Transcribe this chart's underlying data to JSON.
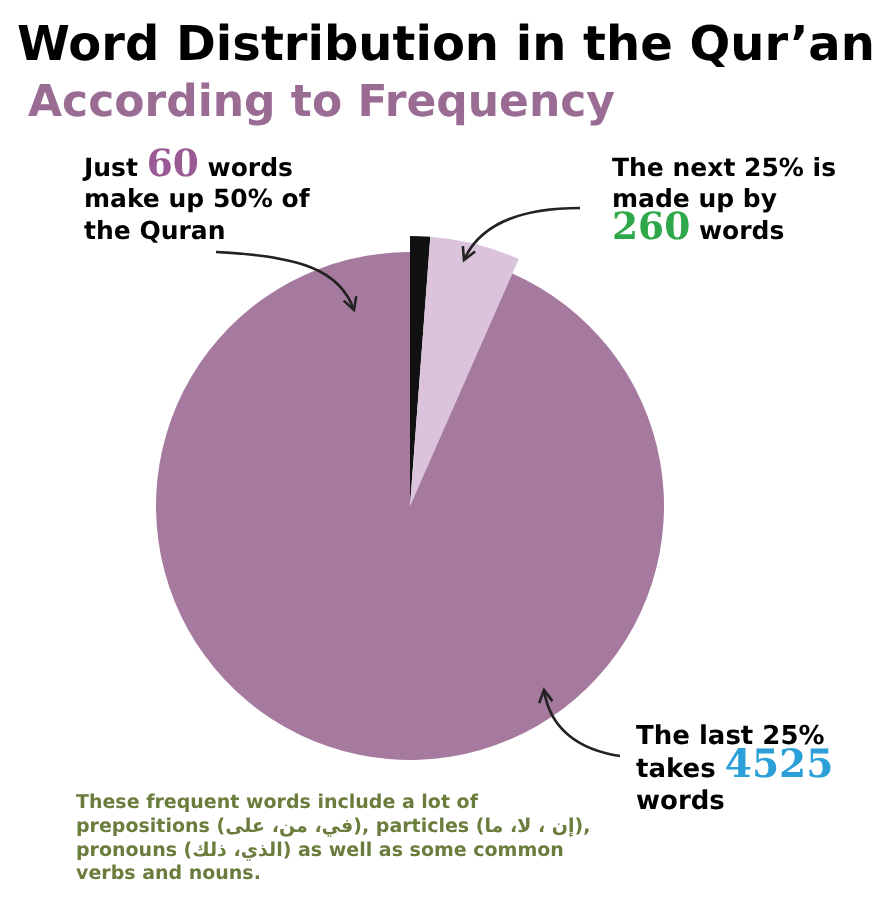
{
  "chart_data": {
    "type": "pie",
    "title": "Word Distribution in the Qur’an",
    "subtitle": "According to Frequency",
    "categories": [
      null,
      null,
      null
    ],
    "values": [
      1.2,
      5.4,
      93.4
    ],
    "colors": [
      "#111111",
      "#dcc3dc",
      "#a67a9f"
    ],
    "annotations": [
      "Just 60 words\nmake up 50% of\nthe Quran",
      "The next 25% is\nmade up by\n260 words",
      "The last 25%\ntakes 4525\nwords",
      "These frequent words include a lot of\nprepositions (في، من، على), particles (إن ، لا، ما),\npronouns (الذي، ذلك) as well as some common\nverbs and nouns."
    ]
  }
}
